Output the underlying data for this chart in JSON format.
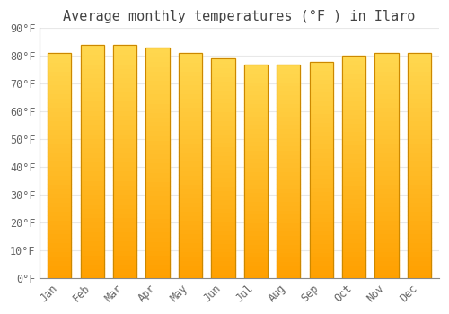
{
  "title": "Average monthly temperatures (°F ) in Ilaro",
  "months": [
    "Jan",
    "Feb",
    "Mar",
    "Apr",
    "May",
    "Jun",
    "Jul",
    "Aug",
    "Sep",
    "Oct",
    "Nov",
    "Dec"
  ],
  "values": [
    81,
    84,
    84,
    83,
    81,
    79,
    77,
    77,
    78,
    80,
    81,
    81
  ],
  "bar_color_top": "#FFD040",
  "bar_color_bottom": "#FFA000",
  "bar_edge_color": "#CC8800",
  "ylim": [
    0,
    90
  ],
  "yticks": [
    0,
    10,
    20,
    30,
    40,
    50,
    60,
    70,
    80,
    90
  ],
  "ytick_labels": [
    "0°F",
    "10°F",
    "20°F",
    "30°F",
    "40°F",
    "50°F",
    "60°F",
    "70°F",
    "80°F",
    "90°F"
  ],
  "background_color": "#FFFFFF",
  "plot_bg_color": "#FFFFFF",
  "grid_color": "#E8E8E8",
  "title_fontsize": 11,
  "tick_fontsize": 8.5,
  "tick_color": "#666666",
  "font_family": "monospace"
}
